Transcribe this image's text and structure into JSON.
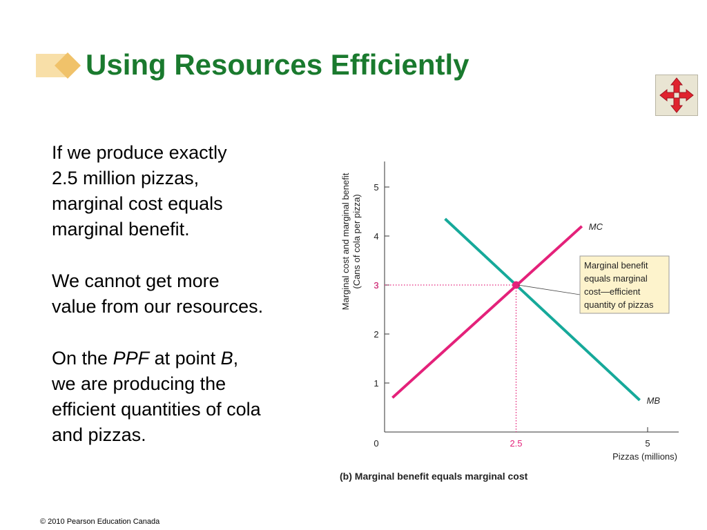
{
  "title": "Using Resources Efficiently",
  "nav_icon": "four-way-arrow-icon",
  "body": {
    "p1_line1": "If we produce exactly",
    "p1_line2": "2.5 million pizzas,",
    "p1_line3": "marginal cost equals",
    "p1_line4": "marginal benefit.",
    "p2_line1": "We cannot get more",
    "p2_line2": "value from our resources.",
    "p3_line1_a": "On the ",
    "p3_line1_ppf": "PPF",
    "p3_line1_b": " at point ",
    "p3_line1_point": "B",
    "p3_line1_c": ",",
    "p3_line2": "we are producing the",
    "p3_line3": "efficient quantities of cola",
    "p3_line4": "and pizzas."
  },
  "chart_data": {
    "type": "line",
    "xlabel": "Pizzas (millions)",
    "ylabel_line1": "Marginal cost and marginal benefit",
    "ylabel_line2": "(Cans of cola per pizza)",
    "xlim": [
      0,
      5
    ],
    "ylim": [
      0,
      5
    ],
    "x_ticks": [
      0,
      5
    ],
    "y_ticks": [
      1,
      2,
      3,
      4,
      5
    ],
    "highlight_x_label": "2.5",
    "highlight_y_label": "3",
    "caption_prefix": "(b)",
    "caption": "Marginal benefit equals marginal cost",
    "series": [
      {
        "name": "MC",
        "color": "#e4217a",
        "points": [
          [
            0.15,
            0.7
          ],
          [
            3.75,
            4.2
          ]
        ]
      },
      {
        "name": "MB",
        "color": "#16a99a",
        "points": [
          [
            1.15,
            4.35
          ],
          [
            4.85,
            0.65
          ]
        ]
      }
    ],
    "equilibrium": {
      "x": 2.5,
      "y": 3,
      "color": "#e4217a"
    },
    "annotation": {
      "lines": [
        "Marginal benefit",
        "equals marginal",
        "cost—efficient",
        "quantity of pizzas"
      ],
      "background": "#fdf3cc"
    }
  },
  "footer": "© 2010 Pearson Education Canada"
}
